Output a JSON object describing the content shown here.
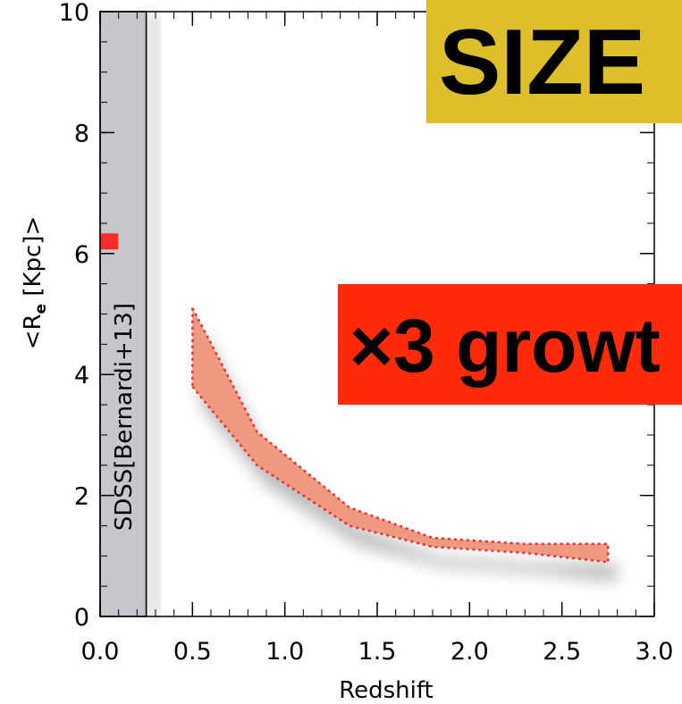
{
  "chart_data": {
    "type": "area",
    "title": "",
    "xlabel": "Redshift",
    "ylabel_main": "<R",
    "ylabel_sub": "e",
    "ylabel_rest": " [Kpc]>",
    "xlim": [
      0.0,
      3.0
    ],
    "ylim": [
      0,
      10
    ],
    "xticks": [
      "0.0",
      "0.5",
      "1.0",
      "1.5",
      "2.0",
      "2.5",
      "3.0"
    ],
    "yticks": [
      "0",
      "2",
      "4",
      "6",
      "8",
      "10"
    ],
    "grid": false,
    "band": {
      "x": [
        0.5,
        0.85,
        1.35,
        1.8,
        2.3,
        2.75
      ],
      "upper": [
        5.1,
        3.05,
        1.8,
        1.3,
        1.2,
        1.2
      ],
      "lower": [
        3.8,
        2.5,
        1.5,
        1.15,
        1.05,
        0.9
      ],
      "fill": "#ee9980",
      "edge": "#e83030"
    },
    "sdss_region": {
      "x_range": [
        0.0,
        0.25
      ],
      "fill": "#c6c7cb",
      "label": "SDSS[Bernardi+13]"
    },
    "sdss_point": {
      "x": 0.05,
      "y": 6.2,
      "color": "#ff2a2a"
    },
    "annotations": [
      {
        "text": "SIZE",
        "bg": "#dcbf2b"
      },
      {
        "text": "×3 growt",
        "bg": "#ff2b0a"
      }
    ]
  }
}
